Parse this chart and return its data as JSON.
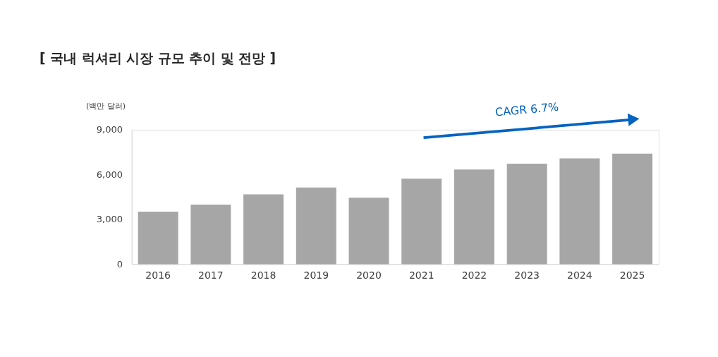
{
  "chart_data": {
    "type": "bar",
    "title": "[ 국내 럭셔리 시장 규모 추이 및 전망 ]",
    "ylabel": "(백만 달러)",
    "categories": [
      "2016",
      "2017",
      "2018",
      "2019",
      "2020",
      "2021",
      "2022",
      "2023",
      "2024",
      "2025"
    ],
    "values": [
      3520,
      3990,
      4680,
      5140,
      4450,
      5730,
      6340,
      6730,
      7080,
      7400
    ],
    "color": "#a6a6a6",
    "ylim": [
      0,
      9000
    ],
    "yticks": [
      0,
      {
        "value": 3000,
        "label": "3,000"
      },
      {
        "value": 6000,
        "label": "6,000"
      },
      {
        "value": 9000,
        "label": "9,000"
      }
    ],
    "grid": false,
    "annotations": [
      "CAGR 6.7%"
    ]
  }
}
